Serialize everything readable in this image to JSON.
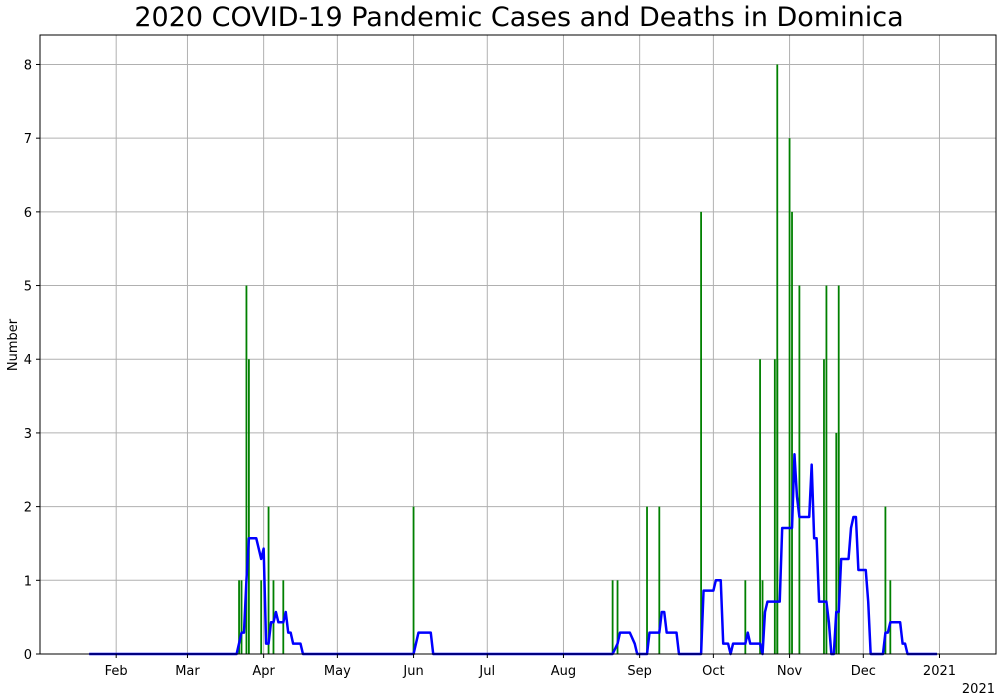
{
  "chart_data": {
    "type": "bar",
    "title": "2020 COVID-19 Pandemic Cases and Deaths in Dominica",
    "xlabel": "",
    "ylabel": "Number",
    "x_offset_label": "2021",
    "xlim": [
      "2020-01-01",
      "2021-01-24"
    ],
    "ylim": [
      0,
      8.4
    ],
    "grid": true,
    "x_ticks": [
      {
        "date": "2020-02-01",
        "label": "Feb"
      },
      {
        "date": "2020-03-01",
        "label": "Mar"
      },
      {
        "date": "2020-04-01",
        "label": "Apr"
      },
      {
        "date": "2020-05-01",
        "label": "May"
      },
      {
        "date": "2020-06-01",
        "label": "Jun"
      },
      {
        "date": "2020-07-01",
        "label": "Jul"
      },
      {
        "date": "2020-08-01",
        "label": "Aug"
      },
      {
        "date": "2020-09-01",
        "label": "Sep"
      },
      {
        "date": "2020-10-01",
        "label": "Oct"
      },
      {
        "date": "2020-11-01",
        "label": "Nov"
      },
      {
        "date": "2020-12-01",
        "label": "Dec"
      },
      {
        "date": "2021-01-01",
        "label": "2021"
      }
    ],
    "y_ticks": [
      0,
      1,
      2,
      3,
      4,
      5,
      6,
      7,
      8
    ],
    "series": [
      {
        "type": "bar",
        "color": "#008000",
        "points": [
          [
            "2020-03-22",
            1
          ],
          [
            "2020-03-23",
            1
          ],
          [
            "2020-03-25",
            5
          ],
          [
            "2020-03-26",
            4
          ],
          [
            "2020-03-31",
            1
          ],
          [
            "2020-04-03",
            2
          ],
          [
            "2020-04-05",
            1
          ],
          [
            "2020-04-09",
            1
          ],
          [
            "2020-06-01",
            2
          ],
          [
            "2020-08-21",
            1
          ],
          [
            "2020-08-23",
            1
          ],
          [
            "2020-09-04",
            2
          ],
          [
            "2020-09-09",
            2
          ],
          [
            "2020-09-26",
            6
          ],
          [
            "2020-10-14",
            1
          ],
          [
            "2020-10-20",
            4
          ],
          [
            "2020-10-21",
            1
          ],
          [
            "2020-10-26",
            4
          ],
          [
            "2020-10-27",
            4
          ],
          [
            "2020-10-27",
            8
          ],
          [
            "2020-11-01",
            7
          ],
          [
            "2020-11-02",
            6
          ],
          [
            "2020-11-05",
            5
          ],
          [
            "2020-11-15",
            4
          ],
          [
            "2020-11-16",
            5
          ],
          [
            "2020-11-20",
            3
          ],
          [
            "2020-11-21",
            5
          ],
          [
            "2020-11-21",
            3
          ],
          [
            "2020-12-10",
            2
          ],
          [
            "2020-12-12",
            1
          ]
        ]
      },
      {
        "type": "line",
        "color": "#0000ff",
        "points": [
          [
            "2020-01-21",
            0
          ],
          [
            "2020-03-21",
            0
          ],
          [
            "2020-03-23",
            0.29
          ],
          [
            "2020-03-24",
            0.29
          ],
          [
            "2020-03-25",
            1
          ],
          [
            "2020-03-26",
            1.57
          ],
          [
            "2020-03-29",
            1.57
          ],
          [
            "2020-03-31",
            1.29
          ],
          [
            "2020-04-01",
            1.43
          ],
          [
            "2020-04-02",
            0.14
          ],
          [
            "2020-04-03",
            0.14
          ],
          [
            "2020-04-04",
            0.43
          ],
          [
            "2020-04-05",
            0.43
          ],
          [
            "2020-04-06",
            0.57
          ],
          [
            "2020-04-07",
            0.43
          ],
          [
            "2020-04-09",
            0.43
          ],
          [
            "2020-04-10",
            0.57
          ],
          [
            "2020-04-11",
            0.29
          ],
          [
            "2020-04-12",
            0.29
          ],
          [
            "2020-04-13",
            0.14
          ],
          [
            "2020-04-16",
            0.14
          ],
          [
            "2020-04-17",
            0
          ],
          [
            "2020-06-01",
            0
          ],
          [
            "2020-06-03",
            0.29
          ],
          [
            "2020-06-08",
            0.29
          ],
          [
            "2020-06-09",
            0
          ],
          [
            "2020-08-21",
            0
          ],
          [
            "2020-08-23",
            0.14
          ],
          [
            "2020-08-24",
            0.29
          ],
          [
            "2020-08-28",
            0.29
          ],
          [
            "2020-08-30",
            0.14
          ],
          [
            "2020-08-31",
            0
          ],
          [
            "2020-09-04",
            0
          ],
          [
            "2020-09-05",
            0.29
          ],
          [
            "2020-09-09",
            0.29
          ],
          [
            "2020-09-10",
            0.57
          ],
          [
            "2020-09-11",
            0.57
          ],
          [
            "2020-09-12",
            0.29
          ],
          [
            "2020-09-16",
            0.29
          ],
          [
            "2020-09-17",
            0
          ],
          [
            "2020-09-26",
            0
          ],
          [
            "2020-09-27",
            0.86
          ],
          [
            "2020-10-01",
            0.86
          ],
          [
            "2020-10-02",
            1
          ],
          [
            "2020-10-04",
            1
          ],
          [
            "2020-10-05",
            0.14
          ],
          [
            "2020-10-07",
            0.14
          ],
          [
            "2020-10-08",
            0
          ],
          [
            "2020-10-09",
            0.14
          ],
          [
            "2020-10-14",
            0.14
          ],
          [
            "2020-10-15",
            0.29
          ],
          [
            "2020-10-16",
            0.14
          ],
          [
            "2020-10-20",
            0.14
          ],
          [
            "2020-10-21",
            0
          ],
          [
            "2020-10-22",
            0.57
          ],
          [
            "2020-10-23",
            0.71
          ],
          [
            "2020-10-28",
            0.71
          ],
          [
            "2020-10-29",
            1.71
          ],
          [
            "2020-11-02",
            1.71
          ],
          [
            "2020-11-03",
            2.71
          ],
          [
            "2020-11-04",
            2.14
          ],
          [
            "2020-11-05",
            1.86
          ],
          [
            "2020-11-09",
            1.86
          ],
          [
            "2020-11-10",
            2.57
          ],
          [
            "2020-11-11",
            1.57
          ],
          [
            "2020-11-12",
            1.57
          ],
          [
            "2020-11-13",
            0.71
          ],
          [
            "2020-11-16",
            0.71
          ],
          [
            "2020-11-17",
            0.43
          ],
          [
            "2020-11-18",
            0
          ],
          [
            "2020-11-19",
            0
          ],
          [
            "2020-11-20",
            0.57
          ],
          [
            "2020-11-21",
            0.57
          ],
          [
            "2020-11-22",
            1.29
          ],
          [
            "2020-11-25",
            1.29
          ],
          [
            "2020-11-26",
            1.71
          ],
          [
            "2020-11-27",
            1.86
          ],
          [
            "2020-11-28",
            1.86
          ],
          [
            "2020-11-29",
            1.14
          ],
          [
            "2020-12-02",
            1.14
          ],
          [
            "2020-12-03",
            0.71
          ],
          [
            "2020-12-04",
            0
          ],
          [
            "2020-12-09",
            0
          ],
          [
            "2020-12-10",
            0.29
          ],
          [
            "2020-12-11",
            0.29
          ],
          [
            "2020-12-12",
            0.43
          ],
          [
            "2020-12-16",
            0.43
          ],
          [
            "2020-12-17",
            0.14
          ],
          [
            "2020-12-18",
            0.14
          ],
          [
            "2020-12-19",
            0
          ],
          [
            "2020-12-31",
            0
          ]
        ]
      }
    ]
  }
}
